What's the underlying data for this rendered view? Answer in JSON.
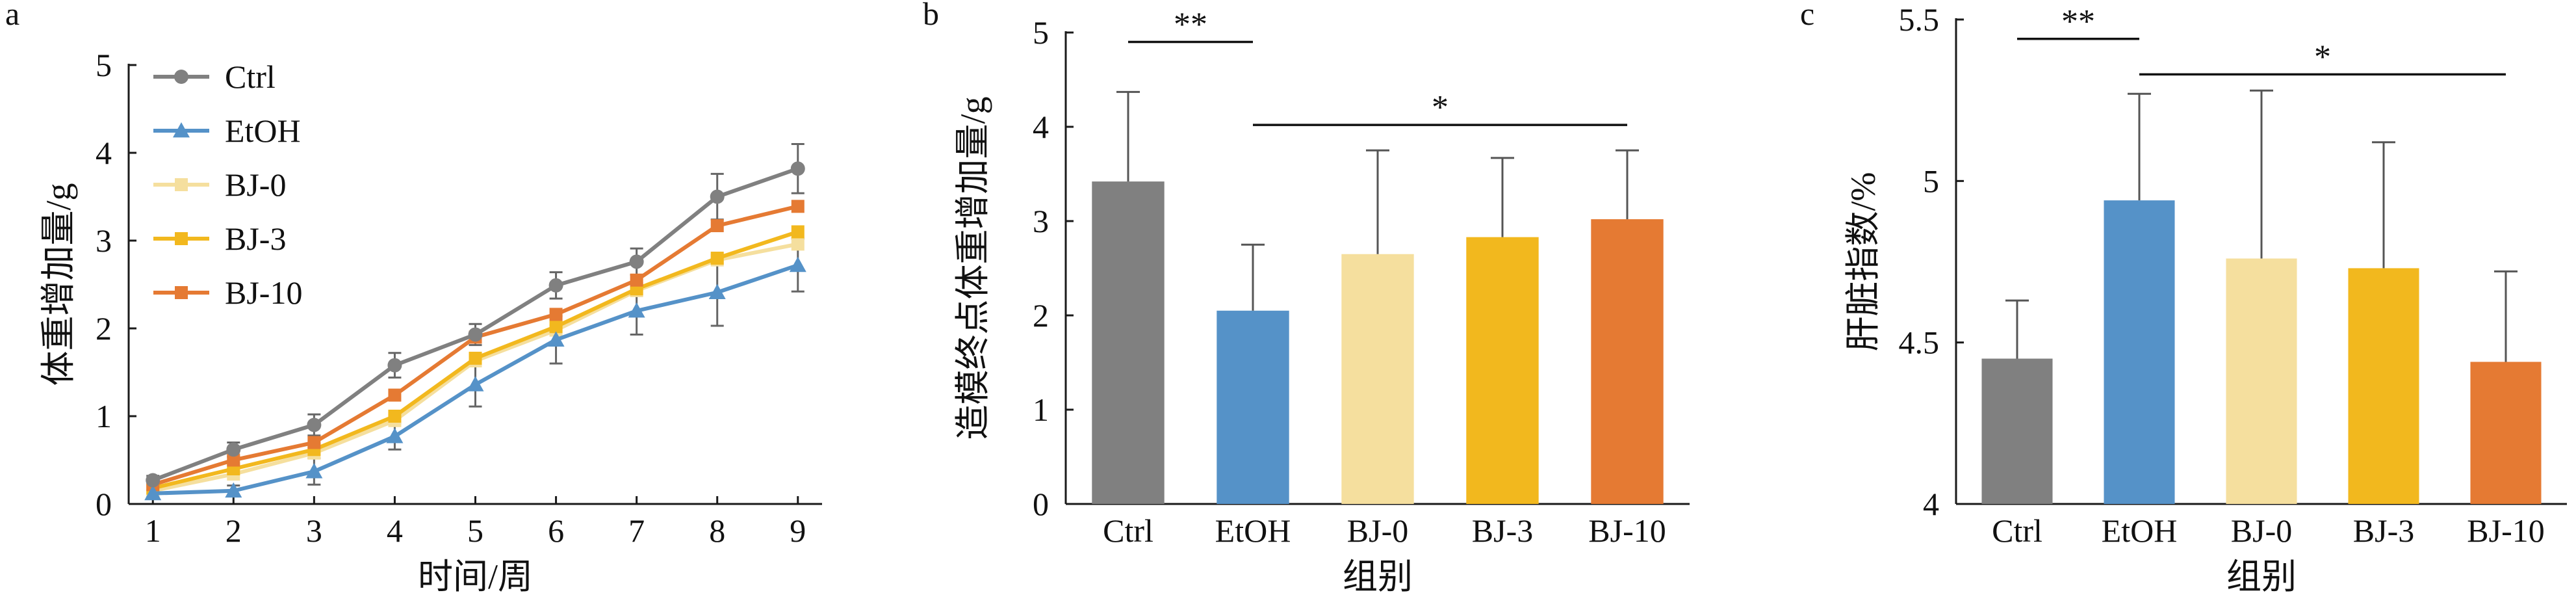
{
  "colors": {
    "Ctrl": "#808080",
    "EtOH": "#5592c8",
    "BJ-0": "#f5df9e",
    "BJ-3": "#f2b81e",
    "BJ-10": "#e57a33"
  },
  "chart_data": [
    {
      "type": "line",
      "panel_label": "a",
      "xlabel": "时间/周",
      "ylabel": "体重增加量/g",
      "x": [
        1,
        2,
        3,
        4,
        5,
        6,
        7,
        8,
        9
      ],
      "xlim": [
        0.7,
        9.3
      ],
      "ylim": [
        0,
        5
      ],
      "yticks": [
        "0",
        "1",
        "2",
        "3",
        "4",
        "5"
      ],
      "xticks": [
        "1",
        "2",
        "3",
        "4",
        "5",
        "6",
        "7",
        "8",
        "9"
      ],
      "legend": "top-left",
      "grid": false,
      "series": [
        {
          "name": "Ctrl",
          "marker": "circle",
          "values": [
            0.27,
            0.62,
            0.9,
            1.58,
            1.93,
            2.49,
            2.76,
            3.5,
            3.82
          ],
          "errors": [
            0.05,
            0.08,
            0.12,
            0.14,
            0.12,
            0.15,
            0.15,
            0.26,
            0.28
          ]
        },
        {
          "name": "EtOH",
          "marker": "triangle",
          "values": [
            0.12,
            0.15,
            0.37,
            0.77,
            1.36,
            1.87,
            2.2,
            2.41,
            2.72
          ],
          "errors": [
            0.04,
            0.06,
            0.15,
            0.15,
            0.25,
            0.27,
            0.27,
            0.38,
            0.3
          ]
        },
        {
          "name": "BJ-0",
          "marker": "square",
          "values": [
            0.15,
            0.34,
            0.58,
            0.95,
            1.63,
            1.98,
            2.43,
            2.78,
            2.96
          ]
        },
        {
          "name": "BJ-3",
          "marker": "square",
          "values": [
            0.18,
            0.4,
            0.62,
            1.0,
            1.66,
            2.02,
            2.45,
            2.8,
            3.1
          ]
        },
        {
          "name": "BJ-10",
          "marker": "square",
          "values": [
            0.22,
            0.5,
            0.7,
            1.24,
            1.9,
            2.16,
            2.55,
            3.17,
            3.39
          ]
        }
      ]
    },
    {
      "type": "bar",
      "panel_label": "b",
      "categories": [
        "Ctrl",
        "EtOH",
        "BJ-0",
        "BJ-3",
        "BJ-10"
      ],
      "values": [
        3.42,
        2.05,
        2.65,
        2.83,
        3.02
      ],
      "errors": [
        0.95,
        0.7,
        1.1,
        0.84,
        0.73
      ],
      "xlabel": "组别",
      "ylabel": "造模终点体重增加量/g",
      "ylim": [
        0,
        5
      ],
      "yticks": [
        "0",
        "1",
        "2",
        "3",
        "4",
        "5"
      ],
      "significance": [
        {
          "from": 0,
          "to": 1,
          "label": "**",
          "y": 4.9
        },
        {
          "from": 1,
          "to": 4,
          "label": "*",
          "y": 4.02
        }
      ]
    },
    {
      "type": "bar",
      "panel_label": "c",
      "categories": [
        "Ctrl",
        "EtOH",
        "BJ-0",
        "BJ-3",
        "BJ-10"
      ],
      "values": [
        4.45,
        4.94,
        4.76,
        4.73,
        4.44
      ],
      "errors": [
        0.18,
        0.33,
        0.52,
        0.39,
        0.28
      ],
      "xlabel": "组别",
      "ylabel": "肝脏指数/%",
      "ylim": [
        4,
        5.5
      ],
      "yticks": [
        "4",
        "4.5",
        "5",
        "5.5"
      ],
      "significance": [
        {
          "from": 0,
          "to": 1,
          "label": "**",
          "y": 5.44
        },
        {
          "from": 1,
          "to": 4,
          "label": "*",
          "y": 5.33
        }
      ]
    }
  ]
}
